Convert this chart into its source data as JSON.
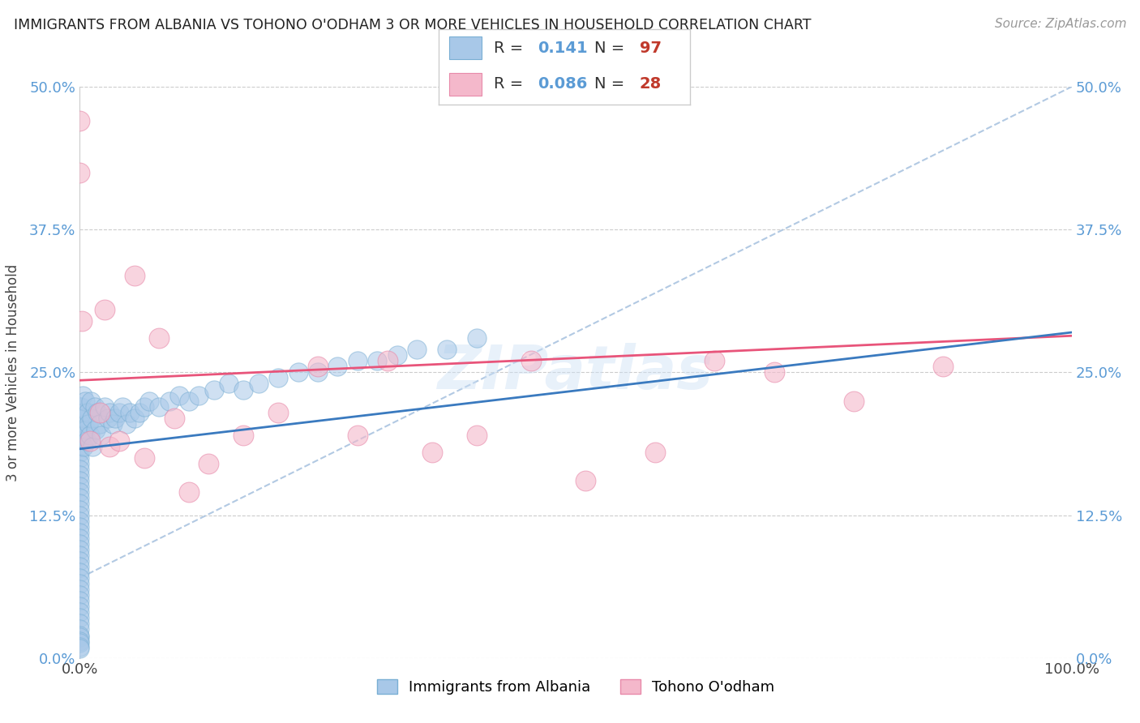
{
  "title": "IMMIGRANTS FROM ALBANIA VS TOHONO O'ODHAM 3 OR MORE VEHICLES IN HOUSEHOLD CORRELATION CHART",
  "source": "Source: ZipAtlas.com",
  "ylabel": "3 or more Vehicles in Household",
  "xlim": [
    0.0,
    1.0
  ],
  "ylim": [
    0.0,
    0.5
  ],
  "yticks": [
    0.0,
    0.125,
    0.25,
    0.375,
    0.5
  ],
  "ytick_labels": [
    "0.0%",
    "12.5%",
    "25.0%",
    "37.5%",
    "50.0%"
  ],
  "legend_R1": "0.141",
  "legend_N1": "97",
  "legend_R2": "0.086",
  "legend_N2": "28",
  "color_blue": "#a8c8e8",
  "color_blue_edge": "#7aafd4",
  "color_pink": "#f4b8cb",
  "color_pink_edge": "#e88aaa",
  "color_trendline_blue": "#3a7abf",
  "color_trendline_pink": "#e8547a",
  "color_refline": "#aac4e0",
  "watermark": "ZIPatlas",
  "blue_N": 97,
  "pink_N": 28,
  "blue_trendline_x": [
    0.0,
    1.0
  ],
  "blue_trendline_y": [
    0.183,
    0.285
  ],
  "pink_trendline_x": [
    0.0,
    1.0
  ],
  "pink_trendline_y": [
    0.243,
    0.282
  ],
  "refline_x": [
    0.0,
    1.0
  ],
  "refline_y": [
    0.07,
    0.5
  ],
  "blue_scatter_x": [
    0.0,
    0.0,
    0.0,
    0.0,
    0.0,
    0.0,
    0.0,
    0.0,
    0.0,
    0.0,
    0.0,
    0.0,
    0.0,
    0.0,
    0.0,
    0.0,
    0.0,
    0.0,
    0.0,
    0.0,
    0.0,
    0.0,
    0.0,
    0.0,
    0.0,
    0.0,
    0.0,
    0.0,
    0.0,
    0.0,
    0.0,
    0.0,
    0.0,
    0.0,
    0.0,
    0.0,
    0.0,
    0.0,
    0.0,
    0.0,
    0.0,
    0.0,
    0.0,
    0.0,
    0.0,
    0.001,
    0.002,
    0.002,
    0.003,
    0.004,
    0.004,
    0.005,
    0.006,
    0.007,
    0.008,
    0.009,
    0.01,
    0.011,
    0.012,
    0.013,
    0.015,
    0.016,
    0.018,
    0.02,
    0.022,
    0.025,
    0.028,
    0.03,
    0.033,
    0.036,
    0.04,
    0.043,
    0.047,
    0.05,
    0.055,
    0.06,
    0.065,
    0.07,
    0.08,
    0.09,
    0.1,
    0.11,
    0.12,
    0.135,
    0.15,
    0.165,
    0.18,
    0.2,
    0.22,
    0.24,
    0.26,
    0.28,
    0.3,
    0.32,
    0.34,
    0.37,
    0.4
  ],
  "blue_scatter_y": [
    0.22,
    0.21,
    0.205,
    0.2,
    0.195,
    0.19,
    0.185,
    0.18,
    0.175,
    0.17,
    0.165,
    0.16,
    0.155,
    0.15,
    0.145,
    0.14,
    0.135,
    0.13,
    0.125,
    0.12,
    0.115,
    0.11,
    0.105,
    0.1,
    0.095,
    0.09,
    0.085,
    0.08,
    0.075,
    0.07,
    0.065,
    0.06,
    0.055,
    0.05,
    0.045,
    0.04,
    0.035,
    0.03,
    0.025,
    0.02,
    0.018,
    0.015,
    0.013,
    0.01,
    0.008,
    0.22,
    0.215,
    0.195,
    0.23,
    0.21,
    0.185,
    0.225,
    0.2,
    0.19,
    0.215,
    0.205,
    0.195,
    0.225,
    0.21,
    0.185,
    0.22,
    0.2,
    0.215,
    0.205,
    0.195,
    0.22,
    0.21,
    0.215,
    0.205,
    0.21,
    0.215,
    0.22,
    0.205,
    0.215,
    0.21,
    0.215,
    0.22,
    0.225,
    0.22,
    0.225,
    0.23,
    0.225,
    0.23,
    0.235,
    0.24,
    0.235,
    0.24,
    0.245,
    0.25,
    0.25,
    0.255,
    0.26,
    0.26,
    0.265,
    0.27,
    0.27,
    0.28
  ],
  "pink_scatter_x": [
    0.0,
    0.0,
    0.002,
    0.01,
    0.02,
    0.025,
    0.03,
    0.04,
    0.055,
    0.065,
    0.08,
    0.095,
    0.11,
    0.13,
    0.165,
    0.2,
    0.24,
    0.28,
    0.31,
    0.355,
    0.4,
    0.455,
    0.51,
    0.58,
    0.64,
    0.7,
    0.78,
    0.87
  ],
  "pink_scatter_y": [
    0.47,
    0.425,
    0.295,
    0.19,
    0.215,
    0.305,
    0.185,
    0.19,
    0.335,
    0.175,
    0.28,
    0.21,
    0.145,
    0.17,
    0.195,
    0.215,
    0.255,
    0.195,
    0.26,
    0.18,
    0.195,
    0.26,
    0.155,
    0.18,
    0.26,
    0.25,
    0.225,
    0.255
  ]
}
